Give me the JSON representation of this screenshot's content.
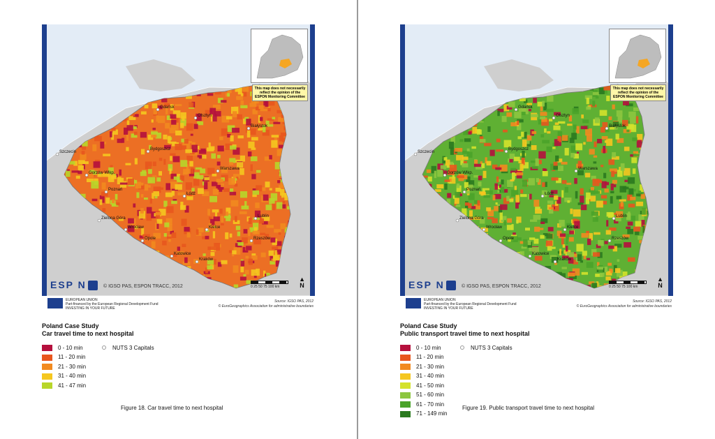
{
  "left": {
    "map": {
      "palette": [
        "#b5103d",
        "#e8561e",
        "#f28a1f",
        "#f5c71f",
        "#b8d62a"
      ],
      "base_color": "#ec6f24",
      "labels": [
        "Gdańsk",
        "Olsztyn",
        "Białystok",
        "Szczecin",
        "Bydgoszcz",
        "Gorzów Wlkp.",
        "Poznań",
        "Warszawa",
        "Łódź",
        "Zielona Góra",
        "Wrocław",
        "Kielce",
        "Lublin",
        "Opole",
        "Katowice",
        "Kraków",
        "Rzeszów"
      ],
      "inset_disclaimer": "This map does not necessarily reflect the opinion of the ESPON Monitoring Committee",
      "logo": "ESP N",
      "copyright": "© IGSO PAS, ESPON TRACC, 2012",
      "scale_labels": "0 25 50 75 100",
      "scale_unit": "km",
      "north": "N"
    },
    "footer": {
      "eu_line1": "EUROPEAN UNION",
      "eu_line2": "Part-financed by the European Regional Development Fund",
      "eu_line3": "INVESTING IN YOUR FUTURE",
      "source": "Source: IGSO PAS, 2012",
      "boundaries": "© EuroGeographics Association for administrative boundaries"
    },
    "title_line1": "Poland Case Study",
    "title_line2": "Car travel time to next hospital",
    "legend": [
      {
        "label": "0 - 10 min",
        "color": "#b5103d"
      },
      {
        "label": "11 - 20 min",
        "color": "#e8561e"
      },
      {
        "label": "21 - 30 min",
        "color": "#f28a1f"
      },
      {
        "label": "31 - 40 min",
        "color": "#f5c71f"
      },
      {
        "label": "41 - 47 min",
        "color": "#b8d62a"
      }
    ],
    "capitals_label": "NUTS 3 Capitals",
    "caption": "Figure 18. Car travel time to next hospital"
  },
  "right": {
    "map": {
      "palette": [
        "#b5103d",
        "#e8561e",
        "#f28a1f",
        "#f5c71f",
        "#d4e22b",
        "#8dc63f",
        "#4aa329",
        "#2b7a1f"
      ],
      "base_color": "#5fb033",
      "labels": [
        "Gdańsk",
        "Olsztyn",
        "Białystok",
        "Szczecin",
        "Bydgoszcz",
        "Gorzów Wlkp.",
        "Poznań",
        "Warszawa",
        "Łódź",
        "Zielona Góra",
        "Wrocław",
        "Kielce",
        "Lublin",
        "Opole",
        "Katowice",
        "Kraków",
        "Rzeszów"
      ],
      "inset_disclaimer": "This map does not necessarily reflect the opinion of the ESPON Monitoring Committee",
      "logo": "ESP N",
      "copyright": "© IGSO PAS, ESPON TRACC, 2012",
      "scale_labels": "0 25 50 75 100",
      "scale_unit": "km",
      "north": "N"
    },
    "footer": {
      "eu_line1": "EUROPEAN UNION",
      "eu_line2": "Part-financed by the European Regional Development Fund",
      "eu_line3": "INVESTING IN YOUR FUTURE",
      "source": "Source: IGSO PAS, 2012",
      "boundaries": "© EuroGeographics Association for administrative boundaries"
    },
    "title_line1": "Poland Case Study",
    "title_line2": "Public transport travel time to next hospital",
    "legend": [
      {
        "label": "0 - 10 min",
        "color": "#b5103d"
      },
      {
        "label": "11 - 20 min",
        "color": "#e8561e"
      },
      {
        "label": "21 - 30 min",
        "color": "#f28a1f"
      },
      {
        "label": "31 - 40 min",
        "color": "#f5c71f"
      },
      {
        "label": "41 - 50 min",
        "color": "#d4e22b"
      },
      {
        "label": "51 - 60 min",
        "color": "#8dc63f"
      },
      {
        "label": "61 - 70 min",
        "color": "#4aa329"
      },
      {
        "label": "71 - 149 min",
        "color": "#2b7a1f"
      }
    ],
    "capitals_label": "NUTS 3 Capitals",
    "caption": "Figure 19. Public transport travel time to next hospital"
  }
}
